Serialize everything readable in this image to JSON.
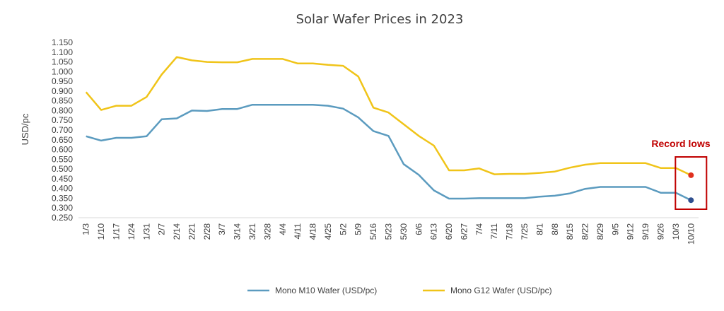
{
  "chart_data": {
    "type": "line",
    "title": "Solar Wafer Prices in 2023",
    "xlabel": "",
    "ylabel": "USD/pc",
    "ylim": [
      0.25,
      1.15
    ],
    "ytick_step": 0.05,
    "yticks": [
      "0.250",
      "0.300",
      "0.350",
      "0.400",
      "0.450",
      "0.500",
      "0.550",
      "0.600",
      "0.650",
      "0.700",
      "0.750",
      "0.800",
      "0.850",
      "0.900",
      "0.950",
      "1.000",
      "1.050",
      "1.100",
      "1.150"
    ],
    "grid": false,
    "legend_position": "bottom",
    "categories": [
      "1/3",
      "1/10",
      "1/17",
      "1/24",
      "1/31",
      "2/7",
      "2/14",
      "2/21",
      "2/28",
      "3/7",
      "3/14",
      "3/21",
      "3/28",
      "4/4",
      "4/11",
      "4/18",
      "4/25",
      "5/2",
      "5/9",
      "5/16",
      "5/23",
      "5/30",
      "6/6",
      "6/13",
      "6/20",
      "6/27",
      "7/4",
      "7/11",
      "7/18",
      "7/25",
      "8/1",
      "8/8",
      "8/15",
      "8/22",
      "8/29",
      "9/5",
      "9/12",
      "9/19",
      "9/26",
      "10/3",
      "10/10"
    ],
    "series": [
      {
        "name": "Mono M10 Wafer (USD/pc)",
        "color": "#5b9bbf",
        "values": [
          0.668,
          0.646,
          0.66,
          0.66,
          0.668,
          0.755,
          0.76,
          0.8,
          0.798,
          0.808,
          0.808,
          0.83,
          0.83,
          0.83,
          0.83,
          0.83,
          0.825,
          0.81,
          0.765,
          0.695,
          0.67,
          0.525,
          0.47,
          0.39,
          0.348,
          0.348,
          0.35,
          0.35,
          0.35,
          0.35,
          0.358,
          0.363,
          0.375,
          0.398,
          0.408,
          0.408,
          0.408,
          0.408,
          0.378,
          0.378,
          0.34
        ]
      },
      {
        "name": "Mono G12 Wafer (USD/pc)",
        "color": "#f0c419",
        "values": [
          0.895,
          0.803,
          0.825,
          0.825,
          0.87,
          0.985,
          1.075,
          1.058,
          1.05,
          1.048,
          1.048,
          1.065,
          1.065,
          1.065,
          1.042,
          1.042,
          1.035,
          1.03,
          0.975,
          0.815,
          0.79,
          0.73,
          0.67,
          0.62,
          0.493,
          0.493,
          0.503,
          0.473,
          0.475,
          0.475,
          0.48,
          0.487,
          0.507,
          0.522,
          0.53,
          0.53,
          0.53,
          0.53,
          0.505,
          0.505,
          0.468
        ]
      }
    ],
    "annotation": {
      "text": "Record lows",
      "color": "#c00000",
      "marker_colors": [
        "#2f4f8f",
        "#e0301e"
      ]
    }
  }
}
